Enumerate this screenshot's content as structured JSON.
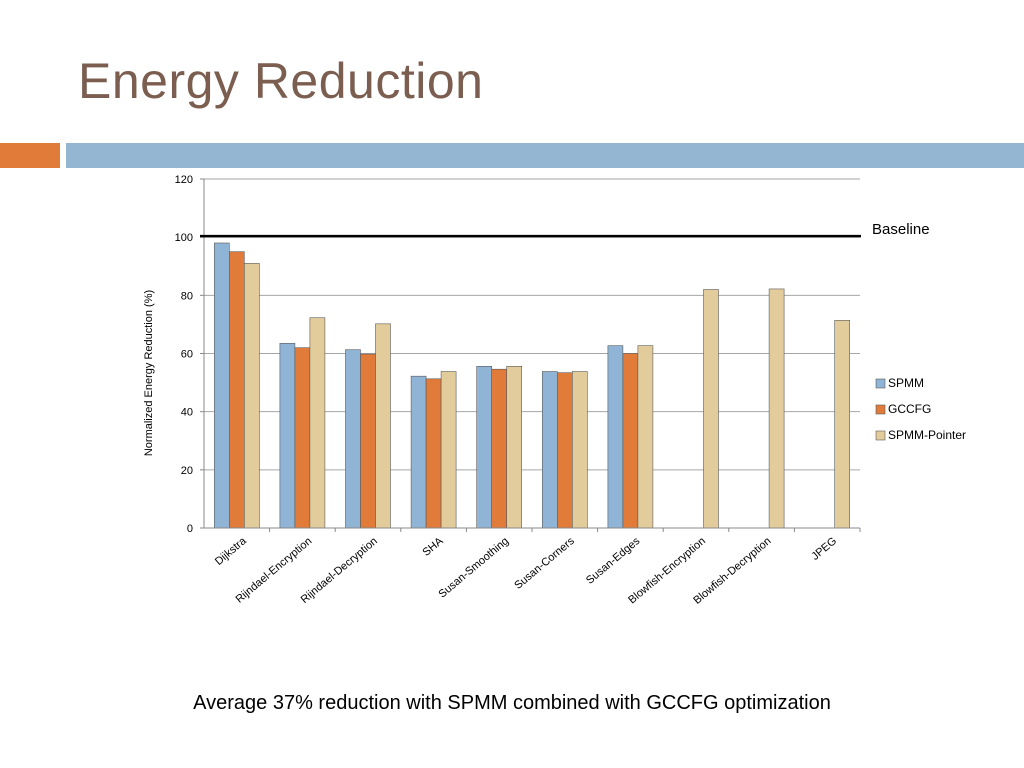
{
  "slide": {
    "title": "Energy Reduction",
    "caption": "Average 37% reduction with SPMM combined with GCCFG optimization",
    "accent_colors": {
      "orange": "#e07b39",
      "blue": "#94b6d2"
    },
    "title_color": "#7b5e4f"
  },
  "chart_data": {
    "type": "bar",
    "ylabel": "Normalized Energy Reduction (%)",
    "ylim": [
      0,
      120
    ],
    "yticks": [
      0,
      20,
      40,
      60,
      80,
      100,
      120
    ],
    "grid": true,
    "legend_position": "right",
    "categories": [
      "Dijkstra",
      "Rijndael-Encryption",
      "Rijndael-Decryption",
      "SHA",
      "Susan-Smoothing",
      "Susan-Corners",
      "Susan-Edges",
      "Blowfish-Encryption",
      "Blowfish-Decryption",
      "JPEG"
    ],
    "series": [
      {
        "name": "SPMM",
        "color": "#8fb4d5",
        "values": [
          98,
          63.5,
          61.3,
          52.2,
          55.6,
          53.8,
          62.7,
          null,
          null,
          null
        ]
      },
      {
        "name": "GCCFG",
        "color": "#e07b39",
        "values": [
          95,
          62,
          59.8,
          51.3,
          54.6,
          53.4,
          60,
          null,
          null,
          null
        ]
      },
      {
        "name": "SPMM-Pointer",
        "color": "#e3cc9c",
        "values": [
          91,
          72.3,
          70.2,
          53.8,
          55.6,
          53.8,
          62.7,
          82,
          82.2,
          71.4
        ]
      }
    ],
    "baseline": {
      "label": "Baseline",
      "value": 100
    }
  }
}
